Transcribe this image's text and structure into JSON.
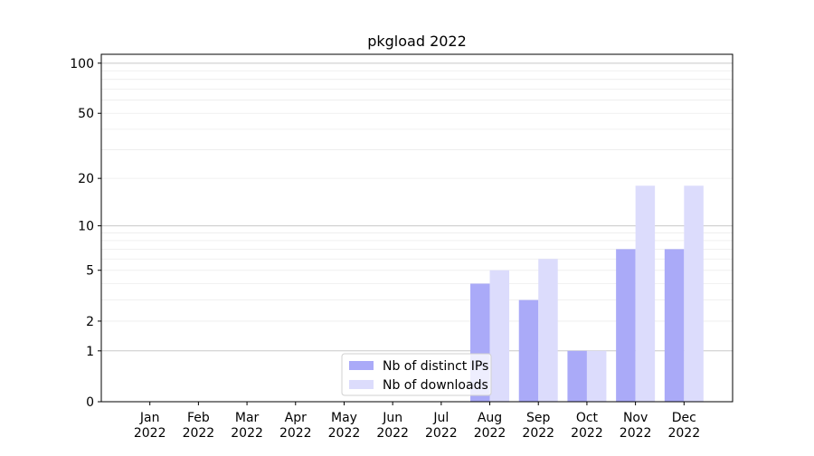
{
  "chart_data": {
    "type": "bar",
    "title": "pkgload 2022",
    "categories": [
      "Jan\n2022",
      "Feb\n2022",
      "Mar\n2022",
      "Apr\n2022",
      "May\n2022",
      "Jun\n2022",
      "Jul\n2022",
      "Aug\n2022",
      "Sep\n2022",
      "Oct\n2022",
      "Nov\n2022",
      "Dec\n2022"
    ],
    "series": [
      {
        "name": "Nb of distinct IPs",
        "color": "#aaaaf8",
        "values": [
          0,
          0,
          0,
          0,
          0,
          0,
          0,
          4,
          3,
          1,
          7,
          7
        ]
      },
      {
        "name": "Nb of downloads",
        "color": "#dcdcfc",
        "values": [
          0,
          0,
          0,
          0,
          0,
          0,
          0,
          5,
          6,
          1,
          18,
          18
        ]
      }
    ],
    "yscale": "log1p",
    "ylim": [
      0,
      113
    ],
    "yticks": [
      0,
      1,
      2,
      5,
      10,
      20,
      50,
      100
    ],
    "major_grid": [
      1,
      10,
      100
    ],
    "minor_grid": [
      2,
      3,
      4,
      5,
      6,
      7,
      8,
      9,
      20,
      30,
      40,
      50,
      60,
      70,
      80,
      90
    ],
    "grid": true,
    "legend": "lower center"
  }
}
